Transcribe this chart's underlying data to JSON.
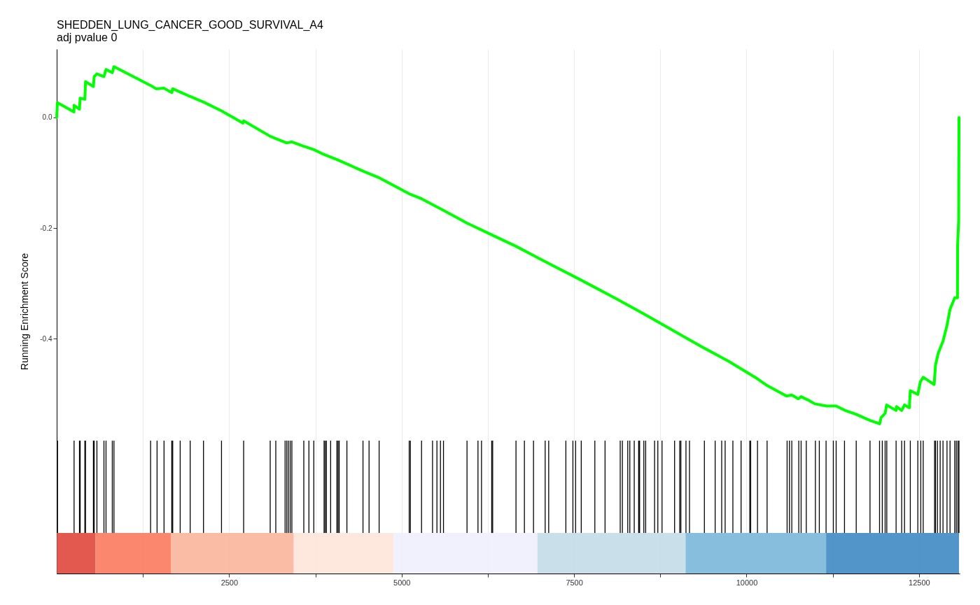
{
  "chart_data": {
    "type": "line",
    "title": "SHEDDEN_LUNG_CANCER_GOOD_SURVIVAL_A4",
    "subtitle": "adj pvalue 0",
    "ylabel": "Running Enrichment Score",
    "color": "#00ff00",
    "x": [
      0,
      10,
      250,
      252,
      330,
      340,
      408,
      418,
      532,
      543,
      583,
      685,
      715,
      806,
      830,
      1361,
      1440,
      1556,
      1668,
      1682,
      1790,
      1935,
      2128,
      2389,
      2700,
      2710,
      3095,
      3176,
      3335,
      3409,
      3582,
      3727,
      3876,
      4062,
      4207,
      4440,
      4674,
      5110,
      5289,
      5607,
      5948,
      6320,
      6658,
      7100,
      7600,
      8100,
      8520,
      8930,
      9340,
      9740,
      10150,
      10300,
      10580,
      10656,
      10750,
      10790,
      10890,
      10990,
      11160,
      11300,
      11430,
      11590,
      11790,
      11930,
      11950,
      12010,
      12030,
      12168,
      12175,
      12249,
      12290,
      12360,
      12374,
      12483,
      12520,
      12561,
      12720,
      12739,
      12780,
      12850,
      12906,
      12950,
      13018,
      13058,
      13060,
      13075,
      13080
    ],
    "values": [
      0,
      0.027,
      0.01,
      0.022,
      0.015,
      0.035,
      0.033,
      0.065,
      0.056,
      0.074,
      0.079,
      0.074,
      0.087,
      0.081,
      0.092,
      0.058,
      0.052,
      0.053,
      0.045,
      0.052,
      0.046,
      0.038,
      0.028,
      0.012,
      -0.01,
      -0.006,
      -0.034,
      -0.038,
      -0.046,
      -0.044,
      -0.052,
      -0.058,
      -0.067,
      -0.076,
      -0.084,
      -0.097,
      -0.109,
      -0.138,
      -0.147,
      -0.168,
      -0.191,
      -0.213,
      -0.233,
      -0.262,
      -0.294,
      -0.327,
      -0.356,
      -0.385,
      -0.414,
      -0.441,
      -0.472,
      -0.485,
      -0.504,
      -0.502,
      -0.509,
      -0.505,
      -0.511,
      -0.518,
      -0.522,
      -0.522,
      -0.53,
      -0.537,
      -0.548,
      -0.554,
      -0.543,
      -0.535,
      -0.52,
      -0.53,
      -0.523,
      -0.53,
      -0.52,
      -0.525,
      -0.494,
      -0.501,
      -0.478,
      -0.47,
      -0.483,
      -0.448,
      -0.426,
      -0.404,
      -0.376,
      -0.347,
      -0.326,
      -0.326,
      -0.231,
      -0.186,
      0
    ],
    "xlim": [
      0,
      13090
    ],
    "ylim": [
      -0.825,
      0.124
    ],
    "xticks": [
      {
        "value": 1250,
        "label": null
      },
      2500,
      {
        "value": 3750,
        "label": null
      },
      5000,
      {
        "value": 6250,
        "label": null
      },
      7500,
      {
        "value": 8750,
        "label": null
      },
      10000,
      {
        "value": 11250,
        "label": null
      },
      12500
    ],
    "yticks": [
      {
        "value": 0,
        "label": "0.0"
      },
      {
        "value": -0.2,
        "label": "-0.2"
      },
      {
        "value": -0.4,
        "label": "-0.4"
      }
    ],
    "grid": "x",
    "bands": [
      {
        "axis": "x",
        "from": 0,
        "to": 563,
        "color": "#e0463c"
      },
      {
        "axis": "x",
        "from": 563,
        "to": 1655,
        "color": "#fb7b5e"
      },
      {
        "axis": "x",
        "from": 1655,
        "to": 3436,
        "color": "#fbb59b"
      },
      {
        "axis": "x",
        "from": 3436,
        "to": 4883,
        "color": "#fee5da"
      },
      {
        "axis": "x",
        "from": 4883,
        "to": 6969,
        "color": "#eef0fc"
      },
      {
        "axis": "x",
        "from": 6969,
        "to": 9116,
        "color": "#c3dbe7"
      },
      {
        "axis": "x",
        "from": 9116,
        "to": 11153,
        "color": "#7ab6d9"
      },
      {
        "axis": "x",
        "from": 11153,
        "to": 13080,
        "color": "#3f8ac3"
      }
    ],
    "ref_lines": [
      {
        "axis": "x",
        "value": 12
      },
      {
        "axis": "x",
        "value": 252
      },
      {
        "axis": "x",
        "value": 330
      },
      {
        "axis": "x",
        "value": 340
      },
      {
        "axis": "x",
        "value": 408
      },
      {
        "axis": "x",
        "value": 418
      },
      {
        "axis": "x",
        "value": 532
      },
      {
        "axis": "x",
        "value": 543
      },
      {
        "axis": "x",
        "value": 583
      },
      {
        "axis": "x",
        "value": 685
      },
      {
        "axis": "x",
        "value": 715
      },
      {
        "axis": "x",
        "value": 806
      },
      {
        "axis": "x",
        "value": 830
      },
      {
        "axis": "x",
        "value": 1361
      },
      {
        "axis": "x",
        "value": 1455
      },
      {
        "axis": "x",
        "value": 1556
      },
      {
        "axis": "x",
        "value": 1668
      },
      {
        "axis": "x",
        "value": 1682
      },
      {
        "axis": "x",
        "value": 1790
      },
      {
        "axis": "x",
        "value": 1935
      },
      {
        "axis": "x",
        "value": 2128
      },
      {
        "axis": "x",
        "value": 2389
      },
      {
        "axis": "x",
        "value": 2710
      },
      {
        "axis": "x",
        "value": 3095
      },
      {
        "axis": "x",
        "value": 3176
      },
      {
        "axis": "x",
        "value": 3311
      },
      {
        "axis": "x",
        "value": 3335
      },
      {
        "axis": "x",
        "value": 3359
      },
      {
        "axis": "x",
        "value": 3385
      },
      {
        "axis": "x",
        "value": 3409
      },
      {
        "axis": "x",
        "value": 3582
      },
      {
        "axis": "x",
        "value": 3656
      },
      {
        "axis": "x",
        "value": 3727
      },
      {
        "axis": "x",
        "value": 3876
      },
      {
        "axis": "x",
        "value": 3892
      },
      {
        "axis": "x",
        "value": 3910
      },
      {
        "axis": "x",
        "value": 3971
      },
      {
        "axis": "x",
        "value": 4062
      },
      {
        "axis": "x",
        "value": 4079
      },
      {
        "axis": "x",
        "value": 4095
      },
      {
        "axis": "x",
        "value": 4207
      },
      {
        "axis": "x",
        "value": 4440
      },
      {
        "axis": "x",
        "value": 4528
      },
      {
        "axis": "x",
        "value": 4674
      },
      {
        "axis": "x",
        "value": 5110
      },
      {
        "axis": "x",
        "value": 5127
      },
      {
        "axis": "x",
        "value": 5289
      },
      {
        "axis": "x",
        "value": 5448
      },
      {
        "axis": "x",
        "value": 5512
      },
      {
        "axis": "x",
        "value": 5563
      },
      {
        "axis": "x",
        "value": 5607
      },
      {
        "axis": "x",
        "value": 5948
      },
      {
        "axis": "x",
        "value": 6107
      },
      {
        "axis": "x",
        "value": 6158
      },
      {
        "axis": "x",
        "value": 6306
      },
      {
        "axis": "x",
        "value": 6320
      },
      {
        "axis": "x",
        "value": 6658
      },
      {
        "axis": "x",
        "value": 6780
      },
      {
        "axis": "x",
        "value": 6912
      },
      {
        "axis": "x",
        "value": 7081
      },
      {
        "axis": "x",
        "value": 7132
      },
      {
        "axis": "x",
        "value": 7381
      },
      {
        "axis": "x",
        "value": 7483
      },
      {
        "axis": "x",
        "value": 7523
      },
      {
        "axis": "x",
        "value": 7604
      },
      {
        "axis": "x",
        "value": 7801
      },
      {
        "axis": "x",
        "value": 7949
      },
      {
        "axis": "x",
        "value": 8169
      },
      {
        "axis": "x",
        "value": 8200
      },
      {
        "axis": "x",
        "value": 8278
      },
      {
        "axis": "x",
        "value": 8308
      },
      {
        "axis": "x",
        "value": 8372
      },
      {
        "axis": "x",
        "value": 8436
      },
      {
        "axis": "x",
        "value": 8450
      },
      {
        "axis": "x",
        "value": 8511
      },
      {
        "axis": "x",
        "value": 8538
      },
      {
        "axis": "x",
        "value": 8667
      },
      {
        "axis": "x",
        "value": 8714
      },
      {
        "axis": "x",
        "value": 8775
      },
      {
        "axis": "x",
        "value": 8957
      },
      {
        "axis": "x",
        "value": 9031
      },
      {
        "axis": "x",
        "value": 9048
      },
      {
        "axis": "x",
        "value": 9122
      },
      {
        "axis": "x",
        "value": 9173
      },
      {
        "axis": "x",
        "value": 9389
      },
      {
        "axis": "x",
        "value": 9545
      },
      {
        "axis": "x",
        "value": 9640
      },
      {
        "axis": "x",
        "value": 9690
      },
      {
        "axis": "x",
        "value": 9802
      },
      {
        "axis": "x",
        "value": 9921
      },
      {
        "axis": "x",
        "value": 10047
      },
      {
        "axis": "x",
        "value": 10060
      },
      {
        "axis": "x",
        "value": 10159
      },
      {
        "axis": "x",
        "value": 10298
      },
      {
        "axis": "x",
        "value": 10588
      },
      {
        "axis": "x",
        "value": 10622
      },
      {
        "axis": "x",
        "value": 10656
      },
      {
        "axis": "x",
        "value": 10757
      },
      {
        "axis": "x",
        "value": 10791
      },
      {
        "axis": "x",
        "value": 10866
      },
      {
        "axis": "x",
        "value": 10998
      },
      {
        "axis": "x",
        "value": 11055
      },
      {
        "axis": "x",
        "value": 11153
      },
      {
        "axis": "x",
        "value": 11258
      },
      {
        "axis": "x",
        "value": 11299
      },
      {
        "axis": "x",
        "value": 11420
      },
      {
        "axis": "x",
        "value": 11590
      },
      {
        "axis": "x",
        "value": 11790
      },
      {
        "axis": "x",
        "value": 11928
      },
      {
        "axis": "x",
        "value": 11968
      },
      {
        "axis": "x",
        "value": 12009
      },
      {
        "axis": "x",
        "value": 12033
      },
      {
        "axis": "x",
        "value": 12168
      },
      {
        "axis": "x",
        "value": 12249
      },
      {
        "axis": "x",
        "value": 12290
      },
      {
        "axis": "x",
        "value": 12374
      },
      {
        "axis": "x",
        "value": 12483
      },
      {
        "axis": "x",
        "value": 12526
      },
      {
        "axis": "x",
        "value": 12561
      },
      {
        "axis": "x",
        "value": 12726
      },
      {
        "axis": "x",
        "value": 12739
      },
      {
        "axis": "x",
        "value": 12767
      },
      {
        "axis": "x",
        "value": 12807
      },
      {
        "axis": "x",
        "value": 12848
      },
      {
        "axis": "x",
        "value": 12906
      },
      {
        "axis": "x",
        "value": 12950
      },
      {
        "axis": "x",
        "value": 13018
      },
      {
        "axis": "x",
        "value": 13041
      },
      {
        "axis": "x",
        "value": 13065
      },
      {
        "axis": "x",
        "value": 13080
      }
    ]
  }
}
